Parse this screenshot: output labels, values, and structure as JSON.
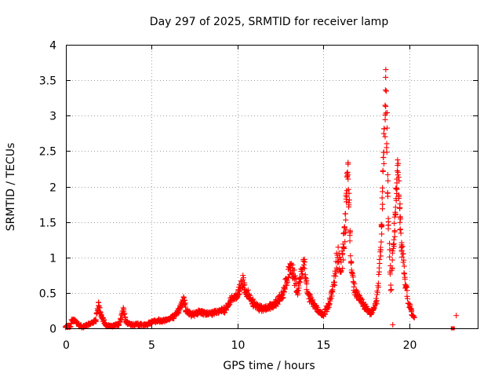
{
  "chart_data": {
    "type": "scatter",
    "title": "Day 297 of 2025, SRMTID for receiver lamp",
    "xlabel": "GPS time / hours",
    "ylabel": "SRMTID / TECUs",
    "xlim": [
      0,
      24
    ],
    "ylim": [
      0,
      4
    ],
    "xticks": [
      "0",
      "5",
      "10",
      "15",
      "20"
    ],
    "yticks": [
      "0",
      "0.5",
      "1",
      "1.5",
      "2",
      "2.5",
      "3",
      "3.5",
      "4"
    ],
    "grid": true,
    "marker": "+",
    "color": "#ff0000",
    "envelope": [
      [
        0.0,
        0.03
      ],
      [
        0.25,
        0.02
      ],
      [
        0.35,
        0.12
      ],
      [
        0.6,
        0.1
      ],
      [
        0.8,
        0.04
      ],
      [
        1.0,
        0.02
      ],
      [
        1.4,
        0.07
      ],
      [
        1.75,
        0.12
      ],
      [
        1.9,
        0.37
      ],
      [
        2.05,
        0.2
      ],
      [
        2.3,
        0.05
      ],
      [
        2.7,
        0.03
      ],
      [
        3.1,
        0.06
      ],
      [
        3.35,
        0.28
      ],
      [
        3.5,
        0.1
      ],
      [
        3.8,
        0.05
      ],
      [
        4.3,
        0.06
      ],
      [
        4.7,
        0.05
      ],
      [
        5.0,
        0.1
      ],
      [
        5.6,
        0.12
      ],
      [
        6.0,
        0.14
      ],
      [
        6.4,
        0.2
      ],
      [
        6.7,
        0.32
      ],
      [
        6.85,
        0.45
      ],
      [
        7.0,
        0.28
      ],
      [
        7.3,
        0.2
      ],
      [
        7.8,
        0.25
      ],
      [
        8.3,
        0.22
      ],
      [
        8.8,
        0.25
      ],
      [
        9.3,
        0.28
      ],
      [
        9.7,
        0.45
      ],
      [
        10.0,
        0.5
      ],
      [
        10.3,
        0.72
      ],
      [
        10.5,
        0.55
      ],
      [
        10.8,
        0.42
      ],
      [
        11.2,
        0.32
      ],
      [
        11.7,
        0.3
      ],
      [
        12.2,
        0.36
      ],
      [
        12.6,
        0.5
      ],
      [
        12.85,
        0.72
      ],
      [
        13.1,
        0.95
      ],
      [
        13.3,
        0.8
      ],
      [
        13.5,
        0.55
      ],
      [
        13.7,
        0.8
      ],
      [
        13.9,
        0.98
      ],
      [
        14.1,
        0.5
      ],
      [
        14.4,
        0.38
      ],
      [
        14.7,
        0.28
      ],
      [
        15.0,
        0.2
      ],
      [
        15.3,
        0.35
      ],
      [
        15.6,
        0.65
      ],
      [
        15.85,
        1.1
      ],
      [
        16.05,
        0.9
      ],
      [
        16.3,
        1.6
      ],
      [
        16.45,
        2.4
      ],
      [
        16.6,
        1.0
      ],
      [
        16.8,
        0.6
      ],
      [
        17.1,
        0.45
      ],
      [
        17.5,
        0.3
      ],
      [
        17.8,
        0.22
      ],
      [
        18.1,
        0.4
      ],
      [
        18.35,
        1.2
      ],
      [
        18.55,
        2.8
      ],
      [
        18.65,
        3.68
      ],
      [
        18.8,
        1.5
      ],
      [
        18.95,
        0.6
      ],
      [
        19.2,
        1.8
      ],
      [
        19.35,
        2.35
      ],
      [
        19.55,
        1.3
      ],
      [
        19.75,
        0.8
      ],
      [
        19.95,
        0.4
      ],
      [
        20.2,
        0.2
      ],
      [
        20.35,
        0.13
      ]
    ],
    "isolated_points": [
      {
        "x": 19.05,
        "y": 0.05
      },
      {
        "x": 22.55,
        "y": 0.0
      },
      {
        "x": 22.75,
        "y": 0.18
      }
    ]
  }
}
